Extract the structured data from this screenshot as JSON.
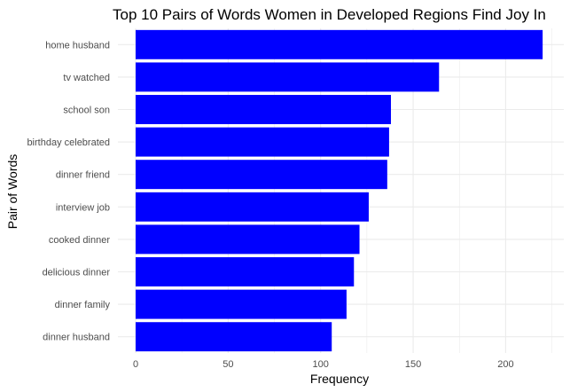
{
  "chart_data": {
    "type": "bar",
    "orientation": "horizontal",
    "title": "Top 10 Pairs of Words Women in Developed Regions Find Joy In",
    "xlabel": "Frequency",
    "ylabel": "Pair of Words",
    "categories": [
      "home husband",
      "tv watched",
      "school son",
      "birthday celebrated",
      "dinner friend",
      "interview job",
      "cooked dinner",
      "delicious dinner",
      "dinner family",
      "dinner husband"
    ],
    "values": [
      220,
      164,
      138,
      137,
      136,
      126,
      121,
      118,
      114,
      106
    ],
    "xlim": [
      0,
      228
    ],
    "xticks": [
      0,
      50,
      100,
      150,
      200
    ],
    "bar_color": "#0000ff",
    "grid": true,
    "grid_color": "#ebebeb",
    "background": "#ffffff"
  }
}
